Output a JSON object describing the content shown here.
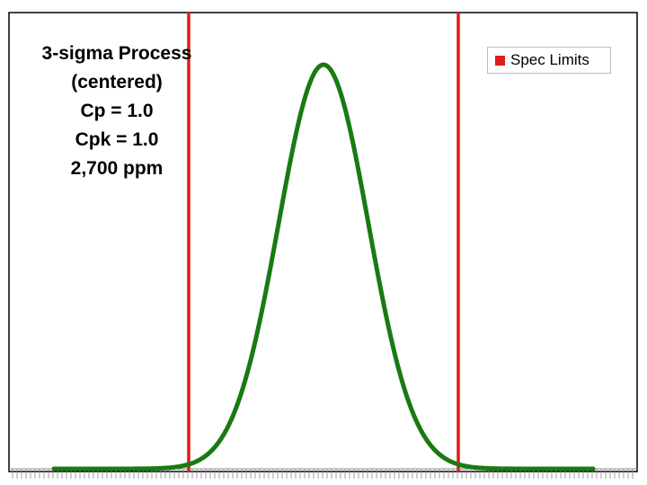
{
  "annotation": {
    "lines": [
      "3-sigma Process",
      "(centered)",
      "Cp = 1.0",
      "Cpk = 1.0",
      "2,700 ppm"
    ]
  },
  "legend": {
    "label": "Spec Limits"
  },
  "colors": {
    "curve": "#1a7a12",
    "spec_limits": "#e01b1b",
    "frame": "#000000",
    "axis_ticks": "#888888"
  },
  "chart_data": {
    "type": "line",
    "title": "",
    "xlabel": "",
    "ylabel": "",
    "xlim": [
      -5,
      5
    ],
    "ylim": [
      0,
      0.45
    ],
    "series": [
      {
        "name": "",
        "distribution": "normal",
        "mean": 0,
        "sd": 1,
        "x_range": [
          -6,
          6
        ]
      }
    ],
    "spec_limits": {
      "name": "Spec Limits",
      "lsl": -3,
      "usl": 3
    },
    "legend_position": "top-right",
    "grid": false
  }
}
